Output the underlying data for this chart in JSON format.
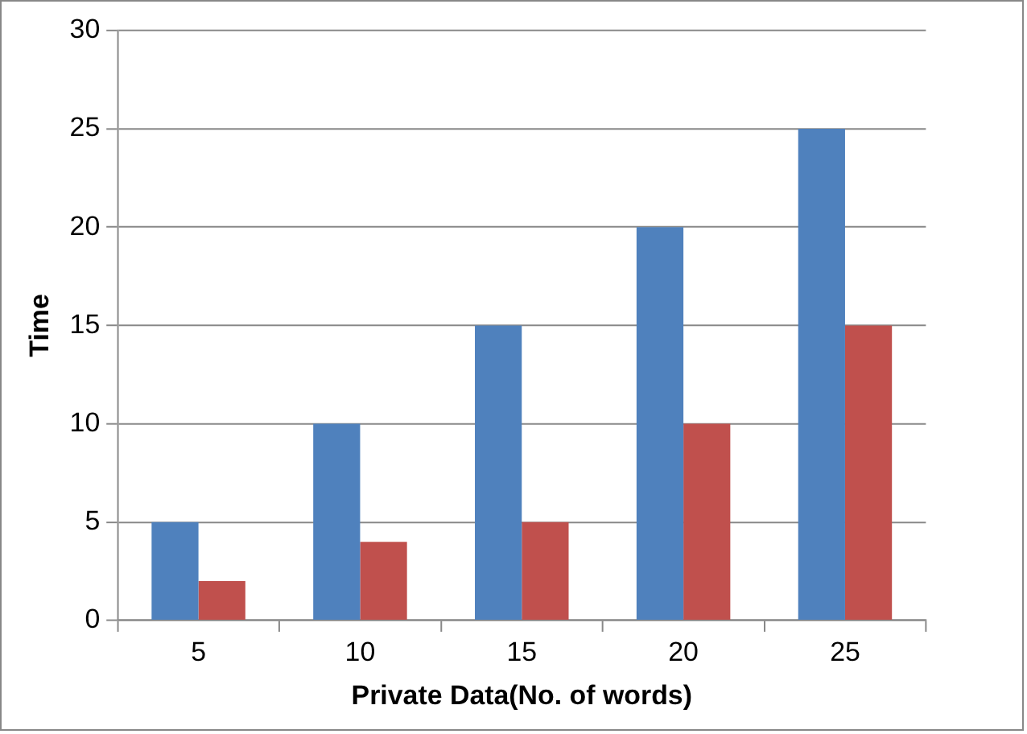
{
  "chart_data": {
    "type": "bar",
    "xlabel": "Private Data(No. of words)",
    "ylabel": "Time",
    "categories": [
      "5",
      "10",
      "15",
      "20",
      "25"
    ],
    "series": [
      {
        "color": "#4f81bd",
        "values": [
          5,
          10,
          15,
          20,
          25
        ]
      },
      {
        "color": "#c0504d",
        "values": [
          2,
          4,
          5,
          10,
          15
        ]
      }
    ],
    "ylim": [
      0,
      30
    ],
    "yticks": [
      0,
      5,
      10,
      15,
      20,
      25,
      30
    ],
    "grid": "y",
    "legend": false
  }
}
